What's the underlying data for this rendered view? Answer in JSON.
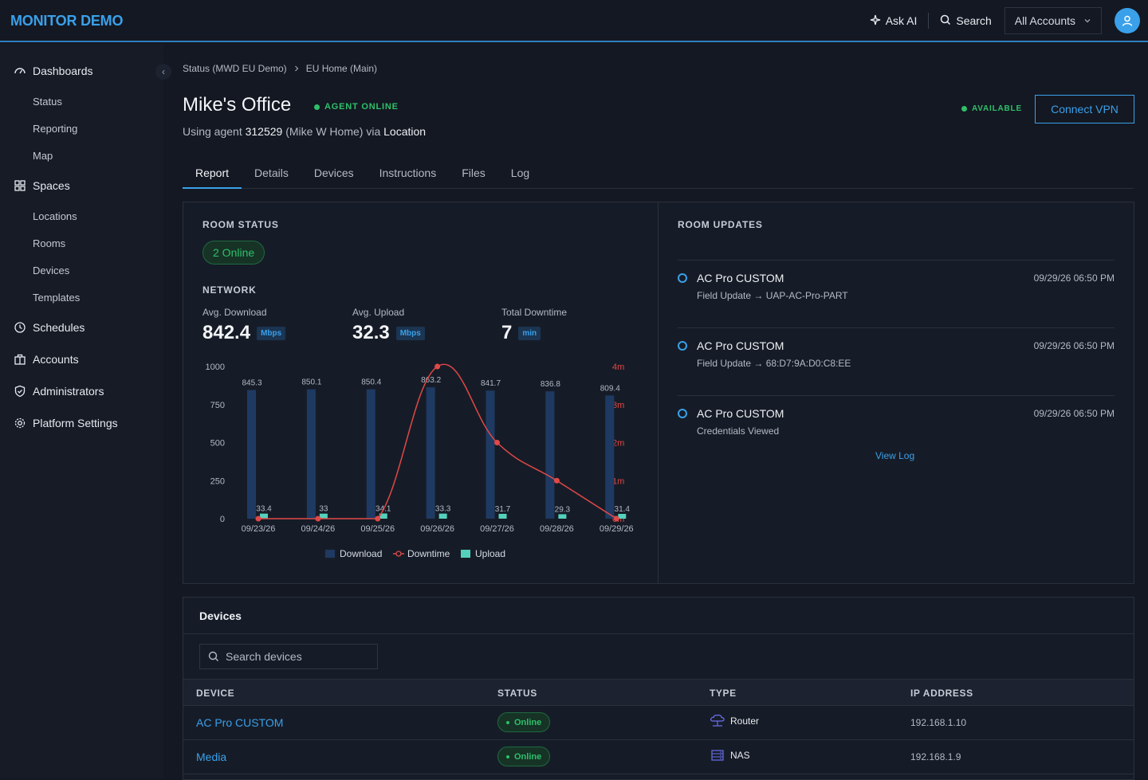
{
  "header": {
    "brand": "MONITOR DEMO",
    "ask_ai": "Ask AI",
    "search": "Search",
    "account_select": "All Accounts"
  },
  "sidebar": {
    "dashboards": "Dashboards",
    "dashboards_items": [
      "Status",
      "Reporting",
      "Map"
    ],
    "spaces": "Spaces",
    "spaces_items": [
      "Locations",
      "Rooms",
      "Devices",
      "Templates"
    ],
    "schedules": "Schedules",
    "accounts": "Accounts",
    "administrators": "Administrators",
    "platform_settings": "Platform Settings"
  },
  "breadcrumb": [
    "Status (MWD EU Demo)",
    "EU Home (Main)"
  ],
  "page": {
    "title": "Mike's Office",
    "agent_status": "AGENT ONLINE",
    "sub_prefix": "Using agent",
    "agent_id": "312529",
    "sub_middle": "(Mike W Home) via",
    "sub_link": "Location",
    "availability": "AVAILABLE",
    "connect_vpn": "Connect VPN"
  },
  "tabs": [
    "Report",
    "Details",
    "Devices",
    "Instructions",
    "Files",
    "Log"
  ],
  "room_status": {
    "heading": "ROOM STATUS",
    "online_pill": "2 Online",
    "network_heading": "NETWORK",
    "avg_download_label": "Avg. Download",
    "avg_download_value": "842.4",
    "avg_download_unit": "Mbps",
    "avg_upload_label": "Avg. Upload",
    "avg_upload_value": "32.3",
    "avg_upload_unit": "Mbps",
    "downtime_label": "Total Downtime",
    "downtime_value": "7",
    "downtime_unit": "min"
  },
  "chart_data": {
    "type": "bar",
    "categories": [
      "09/23/26",
      "09/24/26",
      "09/25/26",
      "09/26/26",
      "09/27/26",
      "09/28/26",
      "09/29/26"
    ],
    "series": [
      {
        "name": "Download",
        "values": [
          845.3,
          850.1,
          850.4,
          863.2,
          841.7,
          836.8,
          809.4
        ],
        "color": "#1e3a62",
        "axis": "left"
      },
      {
        "name": "Upload",
        "values": [
          33.4,
          33,
          34.1,
          33.3,
          31.7,
          29.3,
          31.4
        ],
        "color": "#54d1bd",
        "axis": "left"
      },
      {
        "name": "Downtime",
        "type": "line",
        "values": [
          0,
          0,
          0,
          4,
          2,
          1,
          0
        ],
        "color": "#e04848",
        "axis": "right"
      }
    ],
    "y_left_ticks": [
      "0",
      "250",
      "500",
      "750",
      "1000"
    ],
    "ylim_left": [
      0,
      1000
    ],
    "y_right_ticks": [
      "0m",
      "1m",
      "2m",
      "3m",
      "4m"
    ],
    "ylim_right": [
      0,
      4
    ],
    "legend": [
      "Download",
      "Downtime",
      "Upload"
    ],
    "legend_position": "bottom"
  },
  "room_updates": {
    "heading": "ROOM UPDATES",
    "items": [
      {
        "name": "AC Pro CUSTOM",
        "desc": "Field Update → UAP-AC-Pro-PART",
        "time": "09/29/26 06:50 PM"
      },
      {
        "name": "AC Pro CUSTOM",
        "desc": "Field Update → 68:D7:9A:D0:C8:EE",
        "time": "09/29/26 06:50 PM"
      },
      {
        "name": "AC Pro CUSTOM",
        "desc": "Credentials Viewed",
        "time": "09/29/26 06:50 PM"
      }
    ],
    "view_log": "View Log"
  },
  "devices": {
    "heading": "Devices",
    "search_placeholder": "Search devices",
    "columns": [
      "DEVICE",
      "STATUS",
      "TYPE",
      "IP ADDRESS"
    ],
    "rows": [
      {
        "device": "AC Pro CUSTOM",
        "status": "Online",
        "type": "Router",
        "ip": "192.168.1.10"
      },
      {
        "device": "Media",
        "status": "Online",
        "type": "NAS",
        "ip": "192.168.1.9"
      }
    ]
  },
  "colors": {
    "accent": "#3aa0ea",
    "online": "#2ec06a",
    "downtime": "#e04848",
    "download_bar": "#1e3a62",
    "upload_bar": "#54d1bd"
  }
}
